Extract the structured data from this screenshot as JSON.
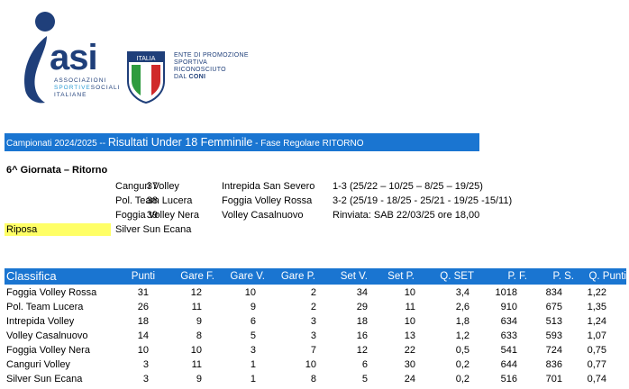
{
  "logo": {
    "asi_word": "asi",
    "sub_line1": "ASSOCIAZIONI",
    "sub_line2": "SPORTIVE",
    "sub_line2b": "SOCIALI",
    "sub_line3": "ITALIANE",
    "shield_text": "ITALIA",
    "coni_line1": "ENTE DI PROMOZIONE",
    "coni_line2": "SPORTIVA",
    "coni_line3": "RICONOSCIUTO",
    "coni_line4a": "DAL",
    "coni_line4b": "CONI"
  },
  "title": {
    "prefix": "Campionati 2024/2025 -- ",
    "main": "Risultati Under 18 Femminile",
    "suffix": " - Fase Regolare RITORNO"
  },
  "round": {
    "title": "6^ Giornata – Ritorno",
    "matches": [
      {
        "num": "37",
        "home": "Canguri Volley",
        "away": "Intrepida San Severo",
        "score": "1-3 (25/22 – 10/25 – 8/25 – 19/25)"
      },
      {
        "num": "38",
        "home": "Pol. Team Lucera",
        "away": "Foggia Volley Rossa",
        "score": "3-2 (25/19 - 18/25 - 25/21 - 19/25 -15/11)"
      },
      {
        "num": "39",
        "home": "Foggia Volley Nera",
        "away": "Volley Casalnuovo",
        "score": "Rinviata: SAB 22/03/25 ore 18,00"
      }
    ],
    "riposa_label": "Riposa",
    "riposa_team": "Silver Sun Ecana"
  },
  "standings": {
    "headers": [
      "Classifica",
      "Punti",
      "Gare F.",
      "Gare V.",
      "Gare P.",
      "Set V.",
      "Set P.",
      "Q. SET",
      "P. F.",
      "P. S.",
      "Q. Punti"
    ],
    "rows": [
      [
        "Foggia Volley Rossa",
        "31",
        "12",
        "10",
        "2",
        "34",
        "10",
        "3,4",
        "1018",
        "834",
        "1,22"
      ],
      [
        "Pol. Team Lucera",
        "26",
        "11",
        "9",
        "2",
        "29",
        "11",
        "2,6",
        "910",
        "675",
        "1,35"
      ],
      [
        "Intrepida Volley",
        "18",
        "9",
        "6",
        "3",
        "18",
        "10",
        "1,8",
        "634",
        "513",
        "1,24"
      ],
      [
        "Volley Casalnuovo",
        "14",
        "8",
        "5",
        "3",
        "16",
        "13",
        "1,2",
        "633",
        "593",
        "1,07"
      ],
      [
        "Foggia Volley Nera",
        "10",
        "10",
        "3",
        "7",
        "12",
        "22",
        "0,5",
        "541",
        "724",
        "0,75"
      ],
      [
        "Canguri Volley",
        "3",
        "11",
        "1",
        "10",
        "6",
        "30",
        "0,2",
        "644",
        "836",
        "0,77"
      ],
      [
        "Silver Sun Ecana",
        "3",
        "9",
        "1",
        "8",
        "5",
        "24",
        "0,2",
        "516",
        "701",
        "0,74"
      ]
    ]
  }
}
